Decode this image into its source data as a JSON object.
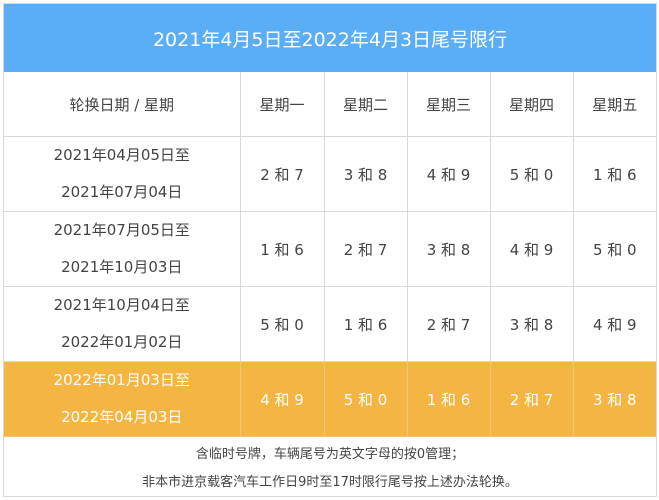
{
  "title": "2021年4月5日至2022年4月3日尾号限行",
  "header": {
    "period_label": "轮换日期 / 星期",
    "days": [
      "星期一",
      "星期二",
      "星期三",
      "星期四",
      "星期五"
    ]
  },
  "rows": [
    {
      "from": "2021年04月05日至",
      "to": "2021年07月04日",
      "cells": [
        "2 和 7",
        "3 和 8",
        "4 和 9",
        "5 和 0",
        "1 和 6"
      ]
    },
    {
      "from": "2021年07月05日至",
      "to": "2021年10月03日",
      "cells": [
        "1 和 6",
        "2 和 7",
        "3 和 8",
        "4 和 9",
        "5 和 0"
      ]
    },
    {
      "from": "2021年10月04日至",
      "to": "2022年01月02日",
      "cells": [
        "5 和 0",
        "1 和 6",
        "2 和 7",
        "3 和 8",
        "4 和 9"
      ]
    },
    {
      "from": "2022年01月03日至",
      "to": "2022年04月03日",
      "cells": [
        "4 和 9",
        "5 和 0",
        "1 和 6",
        "2 和 7",
        "3 和 8"
      ]
    }
  ],
  "notes": [
    "含临时号牌，车辆尾号为英文字母的按0管理；",
    "非本市进京载客汽车工作日9时至17时限行尾号按上述办法轮换。"
  ],
  "colors": {
    "title_bg": "#5aadf7",
    "highlight_bg": "#f5b542",
    "border": "#d9d9d9"
  }
}
